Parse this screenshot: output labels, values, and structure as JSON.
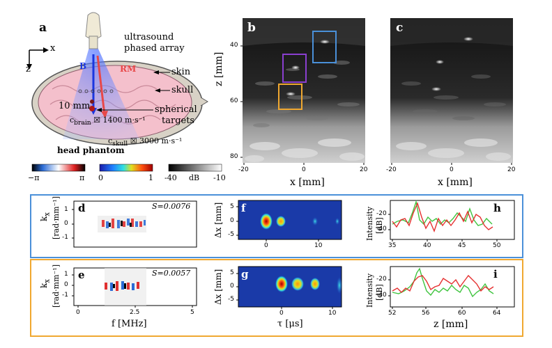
{
  "panel_a": {
    "label": "a",
    "axis_x": "x",
    "axis_z": "z",
    "title_array": "ultrasound",
    "title_array2": "phased array",
    "beam_b": "B",
    "beam_rm": "RM",
    "skin": "skin",
    "skull": "skull",
    "targets": "spherical",
    "targets2": "targets",
    "scale": "10 mm",
    "c_brain": "c",
    "c_brain_sub": "brain",
    "c_brain_val": "☒ 1400 m·s⁻¹",
    "c_skull": "c",
    "c_skull_sub": "skull",
    "c_skull_val": "☒ 3000 m·s⁻¹",
    "phantom": "head phantom"
  },
  "colorbars": {
    "phase": {
      "min": "−π",
      "max": "π"
    },
    "amp": {
      "min": "0",
      "max": "1"
    },
    "db": {
      "min": "-40",
      "unit": "dB",
      "max": "-10"
    }
  },
  "panel_b": {
    "label": "b",
    "ylabel": "z [mm]",
    "xlabel": "x [mm]",
    "yticks": [
      "40",
      "60",
      "80"
    ],
    "xticks": [
      "-20",
      "0",
      "20"
    ]
  },
  "panel_c": {
    "label": "c",
    "xlabel": "x [mm]",
    "xticks": [
      "-20",
      "0",
      "20"
    ]
  },
  "row_blue": {
    "d": {
      "label": "d",
      "s": "S=0.0076",
      "ylabel": "k",
      "ylabel_sub": "x",
      "ylabel2": "[rad·mm⁻¹]",
      "yticks": [
        "1",
        "0",
        "-1"
      ]
    },
    "f": {
      "label": "f",
      "ylabel": "Δx [mm]",
      "yticks": [
        "5",
        "0",
        "-5"
      ],
      "xticks": [
        "0",
        "10"
      ]
    },
    "h": {
      "label": "h",
      "ylabel": "Intensity",
      "ylabel2": "[dB]",
      "yticks": [
        "-20",
        "-40"
      ],
      "xticks": [
        "35",
        "40",
        "45",
        "50"
      ]
    }
  },
  "row_orange": {
    "e": {
      "label": "e",
      "s": "S=0.0057",
      "ylabel": "k",
      "ylabel_sub": "x",
      "ylabel2": "[rad·mm⁻¹]",
      "yticks": [
        "1",
        "0",
        "-1"
      ],
      "xticks": [
        "0",
        "2.5",
        "5"
      ],
      "xlabel": "f  [MHz]"
    },
    "g": {
      "label": "g",
      "ylabel": "Δx [mm]",
      "yticks": [
        "5",
        "0",
        "-5"
      ],
      "xticks": [
        "0",
        "10"
      ],
      "xlabel": "τ [μs]"
    },
    "i": {
      "label": "i",
      "ylabel": "Intensity",
      "ylabel2": "[dB]",
      "yticks": [
        "-20",
        "-40"
      ],
      "xticks": [
        "52",
        "56",
        "60",
        "64"
      ],
      "xlabel": "z [mm]"
    }
  },
  "colors": {
    "blue_box": "#4a90d9",
    "orange_box": "#f0a830",
    "purple_box": "#8a3fd0",
    "red": "#e53030",
    "green": "#3fc43f"
  }
}
